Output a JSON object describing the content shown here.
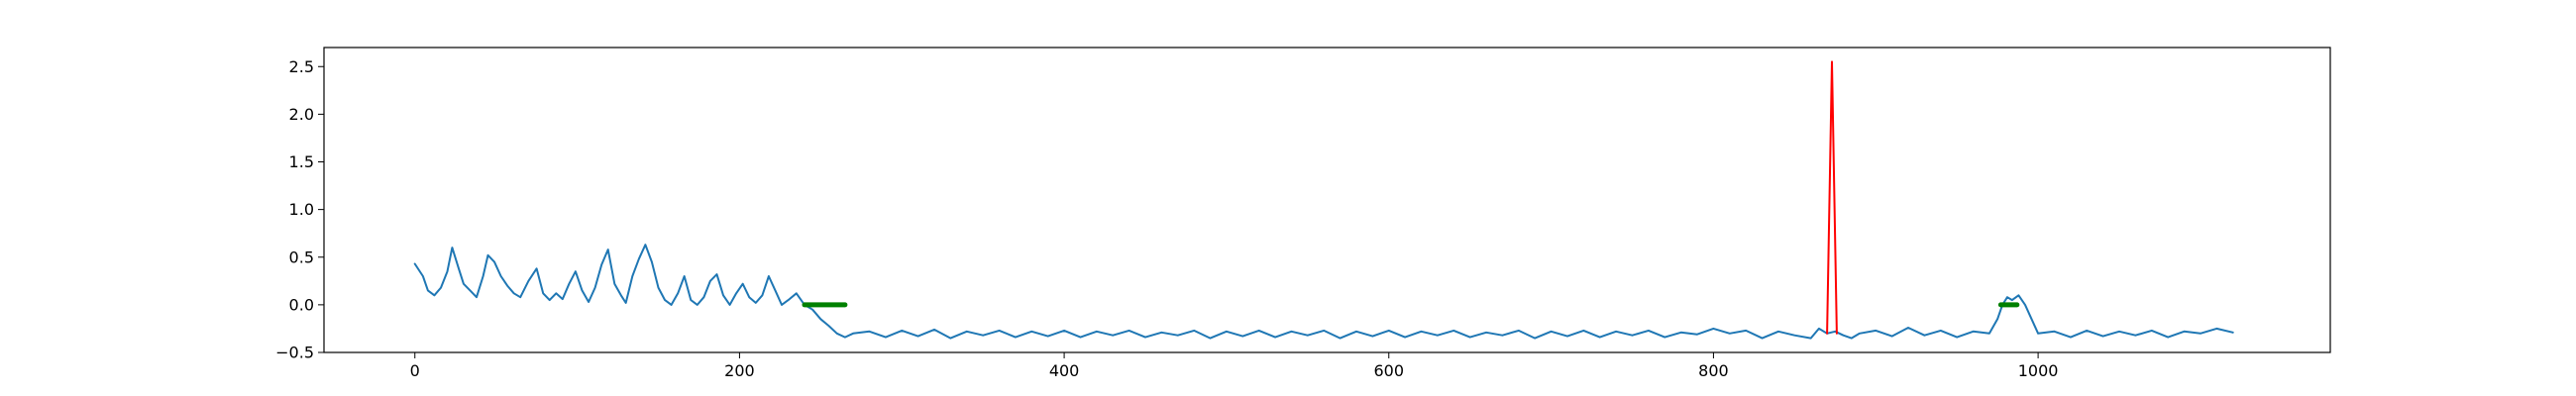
{
  "chart_data": {
    "type": "line",
    "title": "",
    "xlabel": "",
    "ylabel": "",
    "xlim": [
      -56,
      1180
    ],
    "ylim": [
      -0.5,
      2.7
    ],
    "x_ticks": [
      0,
      200,
      400,
      600,
      800,
      1000
    ],
    "x_tick_labels": [
      "0",
      "200",
      "400",
      "600",
      "800",
      "1000"
    ],
    "y_ticks": [
      -0.5,
      0.0,
      0.5,
      1.0,
      1.5,
      2.0,
      2.5
    ],
    "y_tick_labels": [
      "−0.5",
      "0.0",
      "0.5",
      "1.0",
      "1.5",
      "2.0",
      "2.5"
    ],
    "grid": false,
    "series": [
      {
        "color": "#1f77b4",
        "x": [
          0,
          5,
          8,
          12,
          16,
          20,
          23,
          27,
          30,
          34,
          38,
          42,
          45,
          49,
          53,
          57,
          61,
          65,
          70,
          75,
          79,
          83,
          87,
          91,
          95,
          99,
          103,
          107,
          111,
          115,
          119,
          123,
          127,
          130,
          134,
          138,
          142,
          146,
          150,
          154,
          158,
          162,
          166,
          170,
          174,
          178,
          182,
          186,
          190,
          194,
          198,
          202,
          206,
          210,
          214,
          218,
          222,
          226,
          230,
          235,
          240,
          245,
          250,
          255,
          260,
          265,
          270,
          280,
          290,
          300,
          310,
          320,
          330,
          340,
          350,
          360,
          370,
          380,
          390,
          400,
          410,
          420,
          430,
          440,
          450,
          460,
          470,
          480,
          490,
          500,
          510,
          520,
          530,
          540,
          550,
          560,
          570,
          580,
          590,
          600,
          610,
          620,
          630,
          640,
          650,
          660,
          670,
          680,
          690,
          700,
          710,
          720,
          730,
          740,
          750,
          760,
          770,
          780,
          790,
          800,
          810,
          820,
          830,
          840,
          850,
          860,
          865,
          870,
          875,
          880,
          885,
          890,
          900,
          910,
          920,
          930,
          940,
          950,
          960,
          970,
          975,
          978,
          981,
          984,
          988,
          992,
          1000,
          1010,
          1020,
          1030,
          1040,
          1050,
          1060,
          1070,
          1080,
          1090,
          1100,
          1110,
          1120
        ],
        "y": [
          0.43,
          0.3,
          0.15,
          0.1,
          0.18,
          0.35,
          0.6,
          0.38,
          0.22,
          0.15,
          0.08,
          0.3,
          0.52,
          0.45,
          0.3,
          0.2,
          0.12,
          0.08,
          0.25,
          0.38,
          0.12,
          0.05,
          0.12,
          0.06,
          0.22,
          0.35,
          0.15,
          0.03,
          0.18,
          0.42,
          0.58,
          0.22,
          0.1,
          0.02,
          0.3,
          0.48,
          0.63,
          0.45,
          0.18,
          0.05,
          0.0,
          0.12,
          0.3,
          0.05,
          0.0,
          0.08,
          0.25,
          0.32,
          0.1,
          0.0,
          0.12,
          0.22,
          0.08,
          0.02,
          0.1,
          0.3,
          0.15,
          0.0,
          0.05,
          0.12,
          0.0,
          -0.05,
          -0.15,
          -0.22,
          -0.3,
          -0.34,
          -0.3,
          -0.28,
          -0.34,
          -0.27,
          -0.33,
          -0.26,
          -0.35,
          -0.28,
          -0.32,
          -0.27,
          -0.34,
          -0.28,
          -0.33,
          -0.27,
          -0.34,
          -0.28,
          -0.32,
          -0.27,
          -0.34,
          -0.29,
          -0.32,
          -0.27,
          -0.35,
          -0.28,
          -0.33,
          -0.27,
          -0.34,
          -0.28,
          -0.32,
          -0.27,
          -0.35,
          -0.28,
          -0.33,
          -0.27,
          -0.34,
          -0.28,
          -0.32,
          -0.27,
          -0.34,
          -0.29,
          -0.32,
          -0.27,
          -0.35,
          -0.28,
          -0.33,
          -0.27,
          -0.34,
          -0.28,
          -0.32,
          -0.27,
          -0.34,
          -0.29,
          -0.31,
          -0.25,
          -0.3,
          -0.27,
          -0.35,
          -0.28,
          -0.32,
          -0.35,
          -0.25,
          -0.3,
          -0.28,
          -0.32,
          -0.35,
          -0.3,
          -0.27,
          -0.33,
          -0.24,
          -0.32,
          -0.27,
          -0.34,
          -0.28,
          -0.3,
          -0.15,
          0.0,
          0.08,
          0.05,
          0.1,
          0.0,
          -0.3,
          -0.28,
          -0.34,
          -0.27,
          -0.33,
          -0.28,
          -0.32,
          -0.27,
          -0.34,
          -0.28,
          -0.3,
          -0.25,
          -0.29
        ]
      },
      {
        "color": "#008000",
        "x": [
          240,
          265
        ],
        "y": [
          0.0,
          0.0
        ]
      },
      {
        "color": "#008000",
        "x": [
          977,
          987
        ],
        "y": [
          0.0,
          0.0
        ]
      },
      {
        "color": "#ff0000",
        "x": [
          870,
          873,
          876
        ],
        "y": [
          -0.3,
          2.55,
          -0.3
        ]
      }
    ]
  }
}
